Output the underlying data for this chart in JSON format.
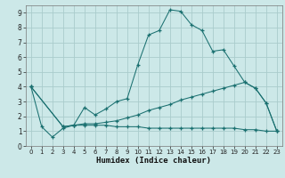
{
  "xlabel": "Humidex (Indice chaleur)",
  "bg_color": "#cce8e8",
  "grid_color": "#aacccc",
  "line_color": "#1a7070",
  "xlim": [
    -0.5,
    23.5
  ],
  "ylim": [
    0,
    9.5
  ],
  "xticks": [
    0,
    1,
    2,
    3,
    4,
    5,
    6,
    7,
    8,
    9,
    10,
    11,
    12,
    13,
    14,
    15,
    16,
    17,
    18,
    19,
    20,
    21,
    22,
    23
  ],
  "yticks": [
    0,
    1,
    2,
    3,
    4,
    5,
    6,
    7,
    8,
    9
  ],
  "line1_x": [
    0,
    1,
    2,
    3,
    4,
    5,
    6,
    7,
    8,
    9,
    10,
    11,
    12,
    13,
    14,
    15,
    16,
    17,
    18,
    19,
    20,
    21,
    22,
    23
  ],
  "line1_y": [
    4.0,
    1.3,
    0.6,
    1.2,
    1.4,
    2.6,
    2.1,
    2.5,
    3.0,
    3.2,
    5.5,
    7.5,
    7.8,
    9.2,
    9.1,
    8.2,
    7.8,
    6.4,
    6.5,
    5.4,
    4.3,
    3.9,
    2.9,
    1.0
  ],
  "line2_x": [
    0,
    3,
    4,
    5,
    6,
    7,
    8,
    9,
    10,
    11,
    12,
    13,
    14,
    15,
    16,
    17,
    18,
    19,
    20,
    21,
    22,
    23
  ],
  "line2_y": [
    4.0,
    1.3,
    1.4,
    1.4,
    1.4,
    1.4,
    1.3,
    1.3,
    1.3,
    1.2,
    1.2,
    1.2,
    1.2,
    1.2,
    1.2,
    1.2,
    1.2,
    1.2,
    1.1,
    1.1,
    1.0,
    1.0
  ],
  "line3_x": [
    0,
    3,
    4,
    5,
    6,
    7,
    8,
    9,
    10,
    11,
    12,
    13,
    14,
    15,
    16,
    17,
    18,
    19,
    20,
    21,
    22,
    23
  ],
  "line3_y": [
    4.0,
    1.3,
    1.4,
    1.5,
    1.5,
    1.6,
    1.7,
    1.9,
    2.1,
    2.4,
    2.6,
    2.8,
    3.1,
    3.3,
    3.5,
    3.7,
    3.9,
    4.1,
    4.3,
    3.9,
    2.9,
    1.0
  ]
}
